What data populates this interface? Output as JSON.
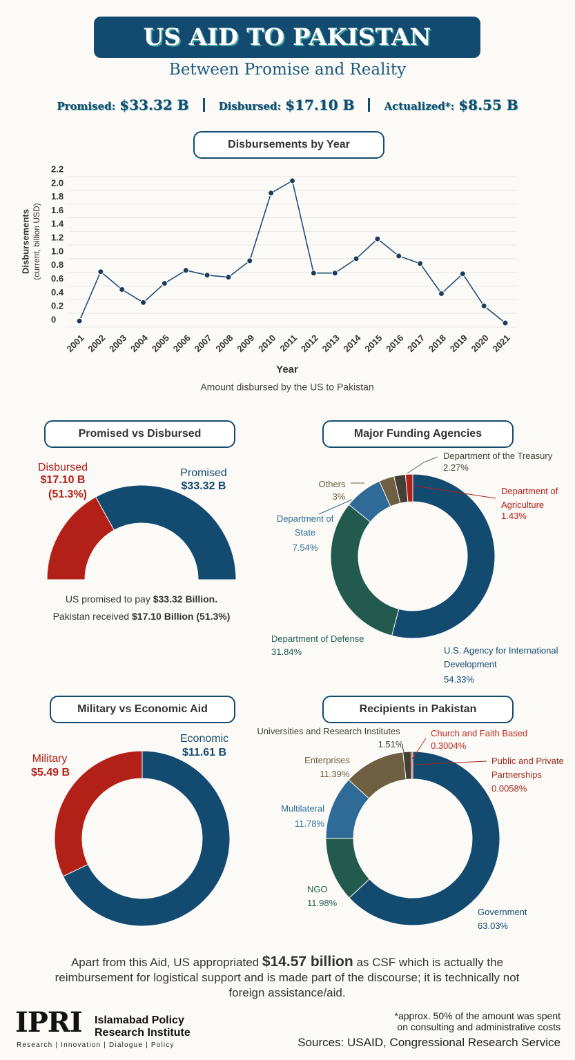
{
  "header": {
    "title": "US AID TO PAKISTAN",
    "subtitle": "Between Promise and Reality",
    "stats": [
      {
        "label": "Promised:",
        "value": "$33.32 B"
      },
      {
        "label": "Disbursed:",
        "value": "$17.10 B"
      },
      {
        "label": "Actualized*:",
        "value": "$8.55 B"
      }
    ]
  },
  "chart_data": [
    {
      "type": "line",
      "title": "Disbursements by Year",
      "ylabel": "Disbursements",
      "ylabel_note": "(current, billion USD)",
      "xlabel": "Year",
      "caption": "Amount disbursed by the US to Pakistan",
      "categories": [
        "2001",
        "2002",
        "2003",
        "2004",
        "2005",
        "2006",
        "2007",
        "2008",
        "2009",
        "2010",
        "2011",
        "2012",
        "2013",
        "2014",
        "2015",
        "2016",
        "2017",
        "2018",
        "2019",
        "2020",
        "2021"
      ],
      "values": [
        0.09,
        0.81,
        0.55,
        0.36,
        0.64,
        0.83,
        0.76,
        0.73,
        0.97,
        1.96,
        2.14,
        0.79,
        0.79,
        1.0,
        1.29,
        1.04,
        0.93,
        0.49,
        0.78,
        0.31,
        0.06
      ],
      "color": "#1f4e79",
      "ylim": [
        0,
        2.2
      ],
      "yticks": [
        0,
        0.2,
        0.4,
        0.6,
        0.8,
        {
          "value": 1,
          "label": "1.0"
        },
        1.2,
        1.4,
        1.6,
        1.8,
        {
          "value": 2,
          "label": "2.0"
        },
        2.2
      ],
      "grid": true
    },
    {
      "type": "semi-donut",
      "title": "Promised vs Disbursed",
      "categories": [
        "Disbursed",
        "Promised"
      ],
      "values": [
        17.1,
        33.32
      ],
      "value_labels": [
        "$17.10 B",
        "$33.32 B"
      ],
      "share_label": "(51.3%)",
      "colors": [
        "#b22018",
        "#134a70"
      ],
      "caption": [
        {
          "text": "US promised to pay ",
          "bold": "$33.32 Billion."
        },
        {
          "text": "Pakistan received ",
          "bold": "$17.10 Billion (51.3%)"
        }
      ]
    },
    {
      "type": "donut",
      "title": "Major Funding Agencies",
      "categories": [
        "U.S. Agency for International Development",
        "Department of Defense",
        "Department of State",
        "Others",
        "Department of the Treasury",
        "Department of Agriculture"
      ],
      "values": [
        54.33,
        31.84,
        7.54,
        3,
        2.27,
        1.43
      ],
      "value_labels": [
        "54.33%",
        "31.84%",
        "7.54%",
        "3%",
        "2.27%",
        "1.43%"
      ],
      "colors": [
        "#134a70",
        "#235a4e",
        "#2f6b96",
        "#6e5e42",
        "#433f37",
        "#b22018"
      ]
    },
    {
      "type": "donut",
      "title": "Military vs Economic Aid",
      "categories": [
        "Economic",
        "Military"
      ],
      "values": [
        11.61,
        5.49
      ],
      "value_labels": [
        "$11.61 B",
        "$5.49 B"
      ],
      "colors": [
        "#134a70",
        "#b22018"
      ]
    },
    {
      "type": "donut",
      "title": "Recipients in Pakistan",
      "categories": [
        "Government",
        "NGO",
        "Multilateral",
        "Enterprises",
        "Universities and Research Institutes",
        "Church and Faith Based",
        "Public and Private Partnerships"
      ],
      "values": [
        63.03,
        11.98,
        11.78,
        11.39,
        1.51,
        0.3004,
        0.0058
      ],
      "value_labels": [
        "63.03%",
        "11.98%",
        "11.78%",
        "11.39%",
        "1.51%",
        "0.3004%",
        "0.0058%"
      ],
      "colors": [
        "#134a70",
        "#235a4e",
        "#2f6b96",
        "#6e5e42",
        "#433f37",
        "#c0281e",
        "#9e2a22"
      ]
    }
  ],
  "footer": {
    "note": {
      "before": "Apart from this Aid, US appropriated ",
      "bold": "$14.57 billion",
      "after": " as CSF which is actually the reimbursement for logistical support and is made part of the discourse; it is technically not foreign assistance/aid."
    },
    "logo": "IPRI",
    "org_name": [
      "Islamabad Policy",
      "Research Institute"
    ],
    "tagline": "Research | Innovation | Dialogue | Policy",
    "footnote": "*approx. 50% of the amount was spent on consulting and administrative costs",
    "sources": "Sources: USAID, Congressional Research Service"
  }
}
